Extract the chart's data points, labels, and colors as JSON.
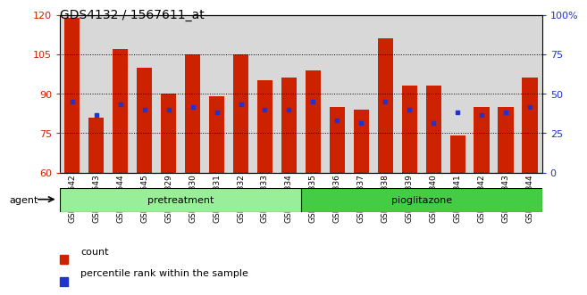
{
  "title": "GDS4132 / 1567611_at",
  "samples": [
    "GSM201542",
    "GSM201543",
    "GSM201544",
    "GSM201545",
    "GSM201829",
    "GSM201830",
    "GSM201831",
    "GSM201832",
    "GSM201833",
    "GSM201834",
    "GSM201835",
    "GSM201836",
    "GSM201837",
    "GSM201838",
    "GSM201839",
    "GSM201840",
    "GSM201841",
    "GSM201842",
    "GSM201843",
    "GSM201844"
  ],
  "bar_heights": [
    119,
    81,
    107,
    100,
    90,
    105,
    89,
    105,
    95,
    96,
    99,
    85,
    84,
    111,
    93,
    93,
    74,
    85,
    85,
    96
  ],
  "blue_dot_values": [
    87,
    82,
    86,
    84,
    84,
    85,
    83,
    86,
    84,
    84,
    87,
    80,
    79,
    87,
    84,
    79,
    83,
    82,
    83,
    85
  ],
  "pretreatment_count": 10,
  "pioglitazone_count": 10,
  "ylim_left": [
    60,
    120
  ],
  "ylim_right": [
    0,
    100
  ],
  "yticks_left": [
    60,
    75,
    90,
    105,
    120
  ],
  "yticks_right": [
    0,
    25,
    50,
    75,
    100
  ],
  "bar_color": "#cc2200",
  "dot_color": "#2233cc",
  "pretreatment_color": "#99ee99",
  "pioglitazone_color": "#44cc44",
  "agent_label": "agent",
  "pretreatment_label": "pretreatment",
  "pioglitazone_label": "pioglitazone",
  "legend_count_label": "count",
  "legend_pct_label": "percentile rank within the sample",
  "bar_width": 0.65,
  "plot_bg_color": "#d8d8d8",
  "title_fontsize": 10,
  "tick_label_fontsize": 6.5,
  "axis_tick_fontsize": 8
}
